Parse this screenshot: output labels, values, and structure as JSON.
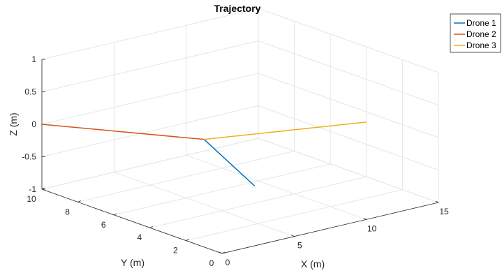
{
  "colors": {
    "drone1": "#0072BD",
    "drone2": "#D95319",
    "drone3": "#EDB120",
    "grid": "#e6e6e6",
    "axis": "#262626"
  },
  "chart_data": {
    "type": "line3d",
    "title": "Trajectory",
    "xlabel": "X (m)",
    "ylabel": "Y (m)",
    "zlabel": "Z (m)",
    "xlim": [
      0,
      15
    ],
    "ylim": [
      0,
      10
    ],
    "zlim": [
      -1,
      1
    ],
    "x_ticks": [
      0,
      5,
      10,
      15
    ],
    "y_ticks": [
      0,
      2,
      4,
      6,
      8,
      10
    ],
    "z_ticks": [
      -1,
      -0.5,
      0,
      0.5,
      1
    ],
    "x_tick_labels": [
      "0",
      "5",
      "10",
      "15"
    ],
    "y_tick_labels": [
      "0",
      "2",
      "4",
      "6",
      "8",
      "10"
    ],
    "z_tick_labels": [
      "-1",
      "-0.5",
      "0",
      "0.5",
      "1"
    ],
    "grid": true,
    "legend_position": "top-right",
    "series": [
      {
        "name": "Drone 1",
        "color_key": "drone1",
        "x": [
          5,
          8.5
        ],
        "y": [
          5,
          5
        ],
        "z": [
          0,
          -0.9
        ]
      },
      {
        "name": "Drone 2",
        "color_key": "drone2",
        "x": [
          5,
          0
        ],
        "y": [
          5,
          10
        ],
        "z": [
          0,
          0
        ]
      },
      {
        "name": "Drone 3",
        "color_key": "drone3",
        "x": [
          5,
          10
        ],
        "y": [
          5,
          0
        ],
        "z": [
          0,
          0.5
        ]
      }
    ]
  }
}
